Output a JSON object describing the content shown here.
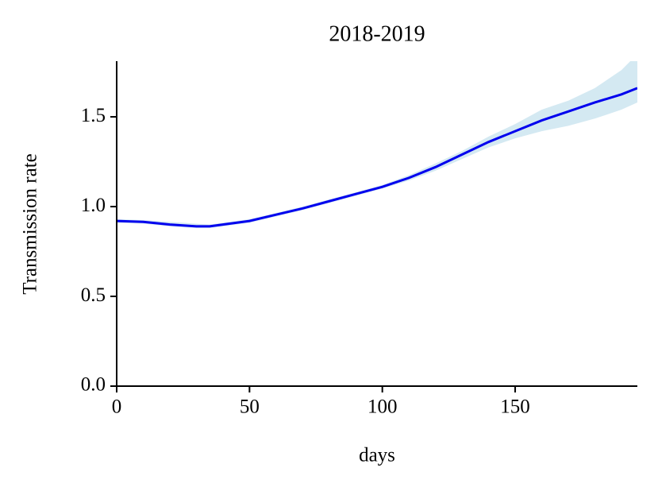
{
  "chart_data": {
    "type": "line",
    "title": "2018-2019",
    "x_label": "days",
    "y_label": "Transmission rate",
    "x": [
      0,
      10,
      20,
      30,
      35,
      40,
      50,
      60,
      70,
      80,
      90,
      100,
      110,
      120,
      130,
      140,
      150,
      160,
      170,
      180,
      190,
      196
    ],
    "values": [
      0.92,
      0.915,
      0.9,
      0.89,
      0.89,
      0.9,
      0.92,
      0.955,
      0.99,
      1.03,
      1.07,
      1.11,
      1.16,
      1.22,
      1.29,
      1.36,
      1.42,
      1.48,
      1.53,
      1.58,
      1.625,
      1.66
    ],
    "lower": [
      0.91,
      0.905,
      0.89,
      0.88,
      0.88,
      0.89,
      0.91,
      0.945,
      0.98,
      1.02,
      1.06,
      1.1,
      1.145,
      1.2,
      1.265,
      1.33,
      1.38,
      1.42,
      1.45,
      1.49,
      1.54,
      1.58
    ],
    "upper": [
      0.93,
      0.925,
      0.915,
      0.905,
      0.9,
      0.91,
      0.93,
      0.965,
      1.0,
      1.04,
      1.08,
      1.12,
      1.175,
      1.24,
      1.31,
      1.39,
      1.46,
      1.54,
      1.59,
      1.66,
      1.76,
      1.85
    ],
    "color": "#0000ee",
    "band_color": "#d4e9f2",
    "xlim": [
      0,
      196
    ],
    "ylim": [
      0,
      1.81
    ],
    "xticks": [
      0,
      50,
      100,
      150
    ],
    "yticks": [
      {
        "value": 0,
        "label": "0.0"
      },
      0.5,
      {
        "value": 1,
        "label": "1.0"
      },
      1.5
    ]
  }
}
